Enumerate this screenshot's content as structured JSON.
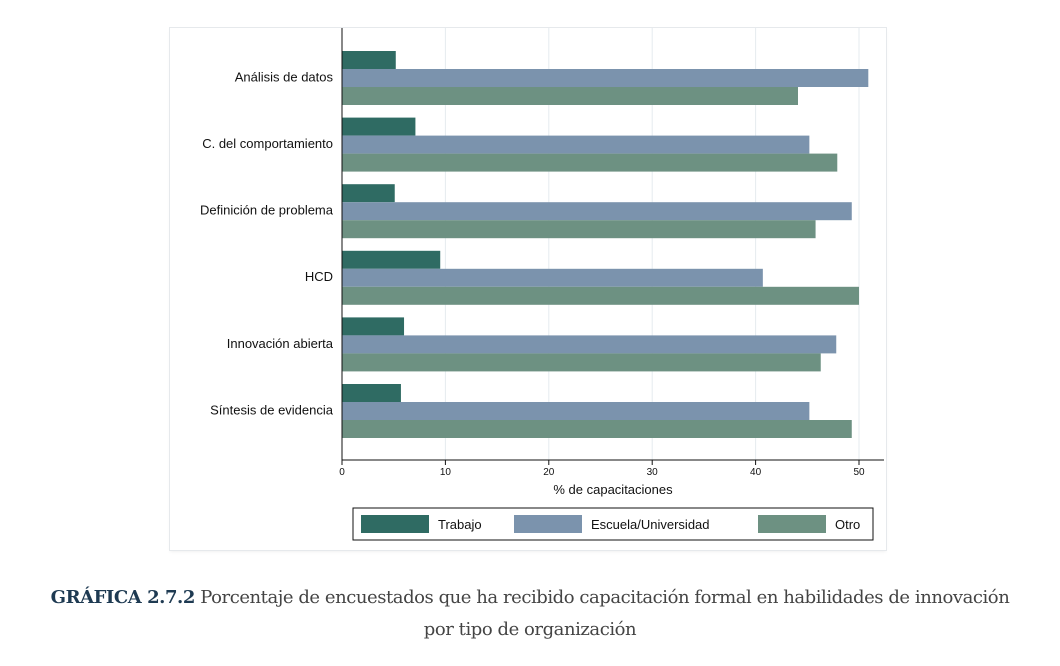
{
  "caption": {
    "label": "GRÁFICA 2.7.2",
    "line1": "Porcentaje de encuestados que ha recibido capacitación formal en habilidades de innovación",
    "line2": "por tipo de organización"
  },
  "chart_data": {
    "type": "bar",
    "orientation": "horizontal",
    "categories": [
      "Análisis de datos",
      "C. del comportamiento",
      "Definición de problema",
      "HCD",
      "Innovación abierta",
      "Síntesis de evidencia"
    ],
    "series": [
      {
        "name": "Trabajo",
        "color": "#2f6b63",
        "values": [
          5.2,
          7.1,
          5.1,
          9.5,
          6.0,
          5.7
        ]
      },
      {
        "name": "Escuela/Universidad",
        "color": "#7b93ad",
        "values": [
          50.9,
          45.2,
          49.3,
          40.7,
          47.8,
          45.2
        ]
      },
      {
        "name": "Otro",
        "color": "#6d9182",
        "values": [
          44.1,
          47.9,
          45.8,
          50.0,
          46.3,
          49.3
        ]
      }
    ],
    "xlabel": "% de capacitaciones",
    "xlim": [
      0,
      52.5
    ],
    "xticks": [
      0,
      10,
      20,
      30,
      40,
      50
    ],
    "grid": true,
    "legend_position": "bottom"
  }
}
